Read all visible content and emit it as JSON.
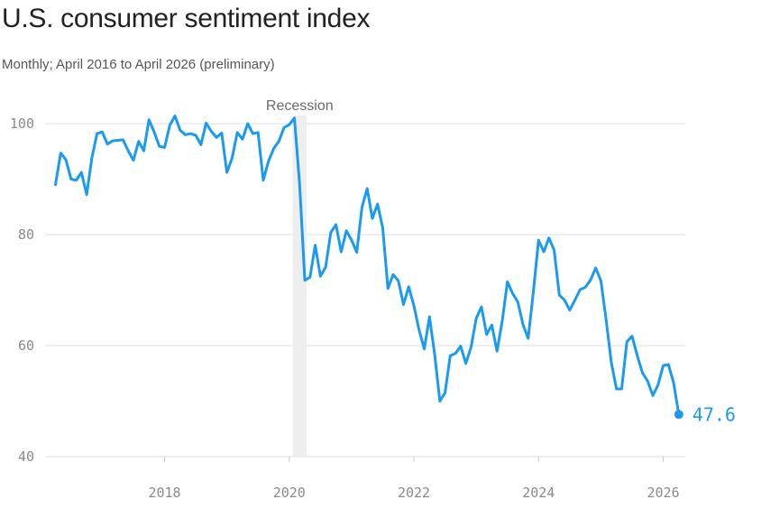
{
  "title": "U.S. consumer sentiment index",
  "subtitle": "Monthly; April 2016 to April 2026 (preliminary)",
  "colors": {
    "line": "#1a9af0",
    "grid": "#dddddd",
    "recession": "#eeeeee"
  },
  "chart_data": {
    "type": "line",
    "title": "U.S. consumer sentiment index",
    "subtitle": "Monthly; April 2016 to April 2026 (preliminary)",
    "x_start": "2016-04",
    "x_end": "2026-04",
    "x_ticks": [
      "2018",
      "2020",
      "2022",
      "2024",
      "2026"
    ],
    "y_ticks": [
      40,
      60,
      80,
      100
    ],
    "ylim": [
      40,
      102
    ],
    "grid": true,
    "annotation": {
      "label": "Recession",
      "start": "2020-02",
      "end": "2020-04"
    },
    "end_label": "47.6",
    "series": [
      {
        "values": [
          89.0,
          94.7,
          93.5,
          90.0,
          89.8,
          91.2,
          87.2,
          93.8,
          98.2,
          98.5,
          96.3,
          96.9,
          97.0,
          97.1,
          95.1,
          93.4,
          96.8,
          95.1,
          100.7,
          98.5,
          95.9,
          95.7,
          99.7,
          101.4,
          98.8,
          98.0,
          98.2,
          97.9,
          96.2,
          100.1,
          98.6,
          97.5,
          98.3,
          91.2,
          93.8,
          98.4,
          97.2,
          100.0,
          98.2,
          98.4,
          89.8,
          93.2,
          95.5,
          96.8,
          99.3,
          99.8,
          101.0,
          89.1,
          71.8,
          72.3,
          78.1,
          72.5,
          74.1,
          80.4,
          81.8,
          76.9,
          80.7,
          79.0,
          76.8,
          84.9,
          88.3,
          82.9,
          85.5,
          81.2,
          70.3,
          72.8,
          71.7,
          67.4,
          70.6,
          67.2,
          62.8,
          59.4,
          65.2,
          58.4,
          50.0,
          51.5,
          58.2,
          58.6,
          59.9,
          56.8,
          59.7,
          64.9,
          67.0,
          62.0,
          63.7,
          59.0,
          64.4,
          71.5,
          69.4,
          67.9,
          63.8,
          61.3,
          69.7,
          79.0,
          76.9,
          79.4,
          77.2,
          69.1,
          68.2,
          66.4,
          68.2,
          70.1,
          70.5,
          71.8,
          74.0,
          71.7,
          64.7,
          57.0,
          52.2,
          52.2,
          60.7,
          61.7,
          58.2,
          55.1,
          53.6,
          51.0,
          52.9,
          56.4,
          56.6,
          53.3,
          47.6
        ]
      }
    ]
  }
}
